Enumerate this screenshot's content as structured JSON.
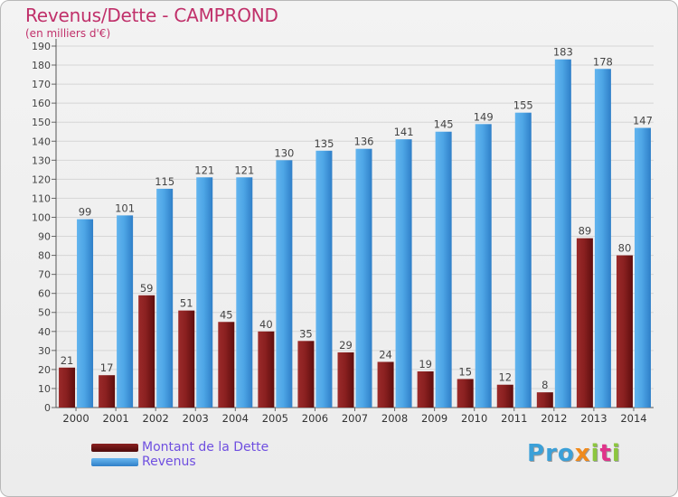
{
  "title": "Revenus/Dette - CAMPROND",
  "subtitle": "(en milliers d'€)",
  "logo": {
    "text": "Proxiti",
    "letters": [
      {
        "ch": "P",
        "color": "#3ba0d8"
      },
      {
        "ch": "r",
        "color": "#3ba0d8"
      },
      {
        "ch": "o",
        "color": "#3ba0d8"
      },
      {
        "ch": "x",
        "color": "#f08a1c"
      },
      {
        "ch": "i",
        "color": "#8cc63e"
      },
      {
        "ch": "t",
        "color": "#e0338a"
      },
      {
        "ch": "i",
        "color": "#8cc63e"
      }
    ]
  },
  "chart_data": {
    "type": "bar",
    "title": "Revenus/Dette - CAMPROND",
    "subtitle": "(en milliers d'€)",
    "categories": [
      "2000",
      "2001",
      "2002",
      "2003",
      "2004",
      "2005",
      "2006",
      "2007",
      "2008",
      "2009",
      "2010",
      "2011",
      "2012",
      "2013",
      "2014"
    ],
    "series": [
      {
        "name": "Montant de la Dette",
        "color": "#7a1a1a",
        "values": [
          21,
          17,
          59,
          51,
          45,
          40,
          35,
          29,
          24,
          19,
          15,
          12,
          8,
          89,
          80
        ]
      },
      {
        "name": "Revenus",
        "color": "#4a9fe0",
        "values": [
          99,
          101,
          115,
          121,
          121,
          130,
          135,
          136,
          141,
          145,
          149,
          155,
          183,
          178,
          147
        ]
      }
    ],
    "ylim": [
      0,
      190
    ],
    "ytick_step": 10,
    "grid": true,
    "legend": "bottom-left",
    "data_labels": true
  }
}
